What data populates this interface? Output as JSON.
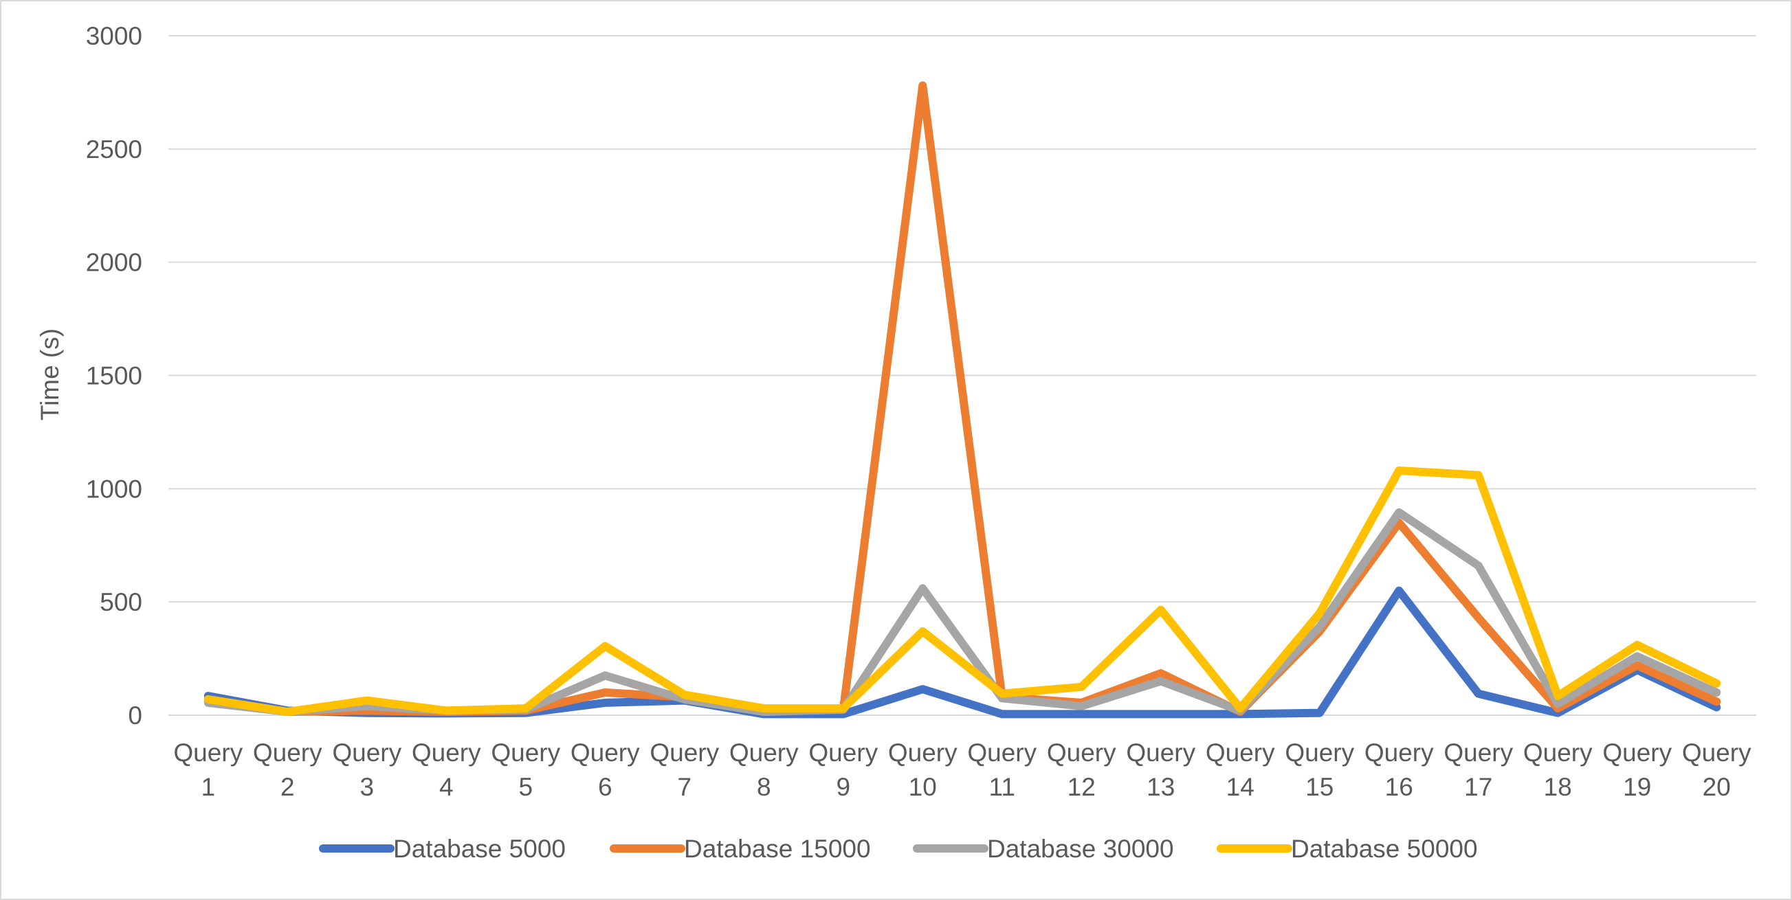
{
  "chart_data": {
    "type": "line",
    "title": "",
    "xlabel": "",
    "ylabel": "Time (s)",
    "ylim": [
      0,
      3000
    ],
    "yticks": [
      0,
      500,
      1000,
      1500,
      2000,
      2500,
      3000
    ],
    "grid": true,
    "legend": "bottom",
    "categories": [
      "Query 1",
      "Query 2",
      "Query 3",
      "Query 4",
      "Query 5",
      "Query 6",
      "Query 7",
      "Query 8",
      "Query 9",
      "Query 10",
      "Query 11",
      "Query 12",
      "Query 13",
      "Query 14",
      "Query 15",
      "Query 16",
      "Query 17",
      "Query 18",
      "Query 19",
      "Query 20"
    ],
    "series": [
      {
        "name": "Database 5000",
        "color": "#4472c4",
        "values": [
          85,
          20,
          10,
          8,
          10,
          55,
          65,
          5,
          5,
          115,
          5,
          5,
          5,
          5,
          10,
          550,
          95,
          10,
          200,
          35
        ]
      },
      {
        "name": "Database 15000",
        "color": "#ed7d31",
        "values": [
          60,
          15,
          20,
          15,
          20,
          100,
          80,
          20,
          25,
          2780,
          80,
          55,
          185,
          15,
          370,
          850,
          430,
          30,
          220,
          60
        ]
      },
      {
        "name": "Database 30000",
        "color": "#a5a5a5",
        "values": [
          55,
          15,
          40,
          20,
          25,
          175,
          70,
          15,
          25,
          560,
          75,
          40,
          150,
          20,
          390,
          895,
          660,
          50,
          260,
          100
        ]
      },
      {
        "name": "Database 50000",
        "color": "#ffc000",
        "values": [
          70,
          15,
          65,
          20,
          30,
          305,
          90,
          30,
          30,
          370,
          95,
          125,
          465,
          30,
          450,
          1080,
          1060,
          85,
          310,
          140
        ]
      }
    ]
  }
}
